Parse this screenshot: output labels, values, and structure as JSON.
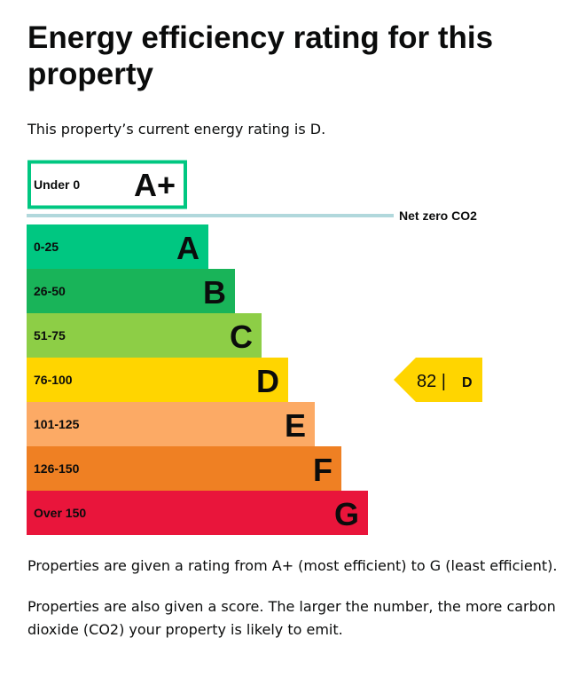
{
  "page_title": "Energy efficiency rating for this property",
  "intro": "This property’s current energy rating is D.",
  "paragraphs": {
    "scale": "Properties are given a rating from A+ (most efficient) to G (least efficient).",
    "score": "Properties are also given a score. The larger the number, the more carbon dioxide (CO2) your property is likely to emit."
  },
  "chart_data": {
    "type": "bar",
    "categories": [
      "A+",
      "A",
      "B",
      "C",
      "D",
      "E",
      "F",
      "G"
    ],
    "bands": [
      {
        "letter": "A+",
        "range": "Under 0",
        "color": "#00c781"
      },
      {
        "letter": "A",
        "range": "0-25",
        "color": "#00c781"
      },
      {
        "letter": "B",
        "range": "26-50",
        "color": "#19b459"
      },
      {
        "letter": "C",
        "range": "51-75",
        "color": "#8dce46"
      },
      {
        "letter": "D",
        "range": "76-100",
        "color": "#ffd500"
      },
      {
        "letter": "E",
        "range": "101-125",
        "color": "#fcaa65"
      },
      {
        "letter": "F",
        "range": "126-150",
        "color": "#ef8023"
      },
      {
        "letter": "G",
        "range": "Over 150",
        "color": "#e9153b"
      }
    ],
    "net_zero_label": "Net zero CO2",
    "net_zero_line_color": "#b1d8dc",
    "current": {
      "score": "82 |",
      "letter": "D",
      "color": "#ffd500"
    }
  }
}
